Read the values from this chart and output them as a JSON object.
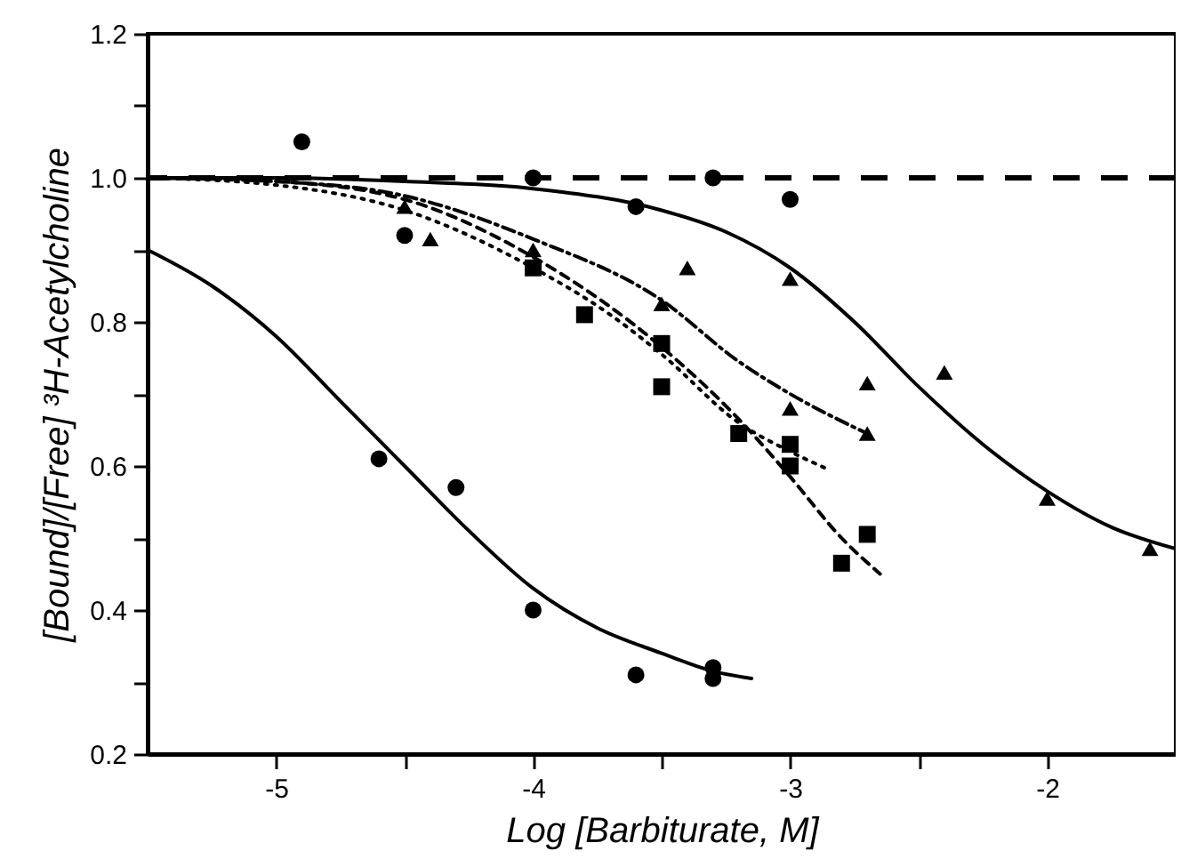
{
  "chart_data": {
    "type": "scatter",
    "xlabel": "Log [Barbiturate, M]",
    "ylabel": "[Bound]/[Free] ³H-Acetylcholine",
    "xlim": [
      -5.5,
      -1.5
    ],
    "ylim": [
      0.2,
      1.2
    ],
    "xticks": [
      -5,
      {
        "value": -4.5,
        "label": null
      },
      -4,
      {
        "value": -3.5,
        "label": null
      },
      -3,
      {
        "value": -2.5,
        "label": null
      },
      -2
    ],
    "yticks": [
      0.2,
      {
        "value": 0.3,
        "label": null
      },
      0.4,
      {
        "value": 0.5,
        "label": null
      },
      0.6,
      {
        "value": 0.7,
        "label": null
      },
      0.8,
      {
        "value": 0.9,
        "label": null
      },
      {
        "value": 1.0,
        "label": "1.0"
      },
      {
        "value": 1.1,
        "label": null
      },
      1.2
    ],
    "grid": false,
    "ref_lines": [
      {
        "axis": "y",
        "value": 1.0,
        "line_style": "dashed",
        "color": "#000000"
      }
    ],
    "series": [
      {
        "marker": "circle",
        "color": "#000000",
        "x": [
          -4.9,
          -4.5,
          -4,
          -3.6,
          -3.3,
          -3
        ],
        "values": [
          1.05,
          0.92,
          1.0,
          0.96,
          1.0,
          0.97
        ]
      },
      {
        "marker": "circle",
        "color": "#000000",
        "x": [
          -4.6,
          -4.3,
          -4,
          -3.6,
          -3.3,
          -3.3
        ],
        "values": [
          0.61,
          0.57,
          0.4,
          0.31,
          0.32,
          0.305
        ]
      },
      {
        "marker": "triangle",
        "color": "#000000",
        "x": [
          -4.4,
          -3.4,
          -3,
          -2.7,
          -2.4,
          -2,
          -1.6
        ],
        "values": [
          0.915,
          0.875,
          0.86,
          0.715,
          0.73,
          0.555,
          0.485
        ]
      },
      {
        "marker": "triangle",
        "color": "#000000",
        "x": [
          -4.5,
          -4,
          -3.5,
          -3,
          -2.7
        ],
        "values": [
          0.96,
          0.9,
          0.825,
          0.68,
          0.645
        ]
      },
      {
        "marker": "square",
        "color": "#000000",
        "x": [
          -4,
          -3.5,
          -3
        ],
        "values": [
          0.875,
          0.71,
          0.63
        ]
      },
      {
        "marker": "square",
        "color": "#000000",
        "x": [
          -3.8,
          -3.5,
          -3.2,
          -3,
          -2.8,
          -2.7
        ],
        "values": [
          0.81,
          0.77,
          0.645,
          0.6,
          0.465,
          0.505
        ]
      },
      {
        "type": "line",
        "marker": "none",
        "line_style": "solid",
        "color": "#000000",
        "x": [
          -5.5,
          -5.25,
          -5,
          -4.75,
          -4.5,
          -4.25,
          -4,
          -3.75,
          -3.5,
          -3.3,
          -3.15
        ],
        "values": [
          0.9,
          0.85,
          0.78,
          0.69,
          0.6,
          0.51,
          0.43,
          0.375,
          0.34,
          0.315,
          0.305
        ]
      },
      {
        "type": "line",
        "marker": "none",
        "line_style": "solid",
        "color": "#000000",
        "x": [
          -5.5,
          -5,
          -4.5,
          -4,
          -3.5,
          -3.25,
          -3,
          -2.75,
          -2.5,
          -2.25,
          -2,
          -1.75,
          -1.5
        ],
        "values": [
          1.0,
          1.0,
          0.995,
          0.985,
          0.955,
          0.925,
          0.875,
          0.8,
          0.71,
          0.63,
          0.565,
          0.515,
          0.485
        ]
      },
      {
        "type": "line",
        "marker": "none",
        "line_style": "dashdot",
        "color": "#000000",
        "x": [
          -5.5,
          -5,
          -4.5,
          -4,
          -3.5,
          -3.2,
          -3,
          -2.7
        ],
        "values": [
          1.0,
          0.995,
          0.975,
          0.915,
          0.83,
          0.745,
          0.7,
          0.645
        ]
      },
      {
        "type": "line",
        "marker": "none",
        "line_style": "dotted",
        "color": "#000000",
        "x": [
          -5.5,
          -5,
          -4.5,
          -4,
          -3.7,
          -3.5,
          -3.2,
          -3,
          -2.85
        ],
        "values": [
          1.0,
          0.99,
          0.955,
          0.875,
          0.81,
          0.755,
          0.66,
          0.62,
          0.595
        ]
      },
      {
        "type": "line",
        "marker": "none",
        "line_style": "dashed",
        "color": "#000000",
        "x": [
          -5.5,
          -5,
          -4.5,
          -4,
          -3.5,
          -3.2,
          -3,
          -2.8,
          -2.65
        ],
        "values": [
          1.0,
          0.995,
          0.97,
          0.89,
          0.765,
          0.665,
          0.585,
          0.5,
          0.45
        ]
      }
    ]
  }
}
